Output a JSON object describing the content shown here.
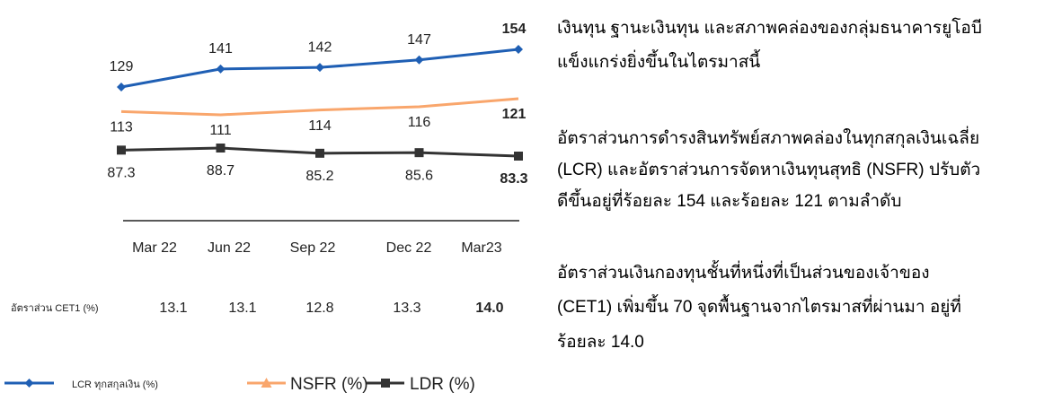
{
  "chart_data": {
    "type": "line",
    "categories": [
      "Mar 22",
      "Jun 22",
      "Sep 22",
      "Dec 22",
      "Mar23"
    ],
    "series": [
      {
        "name": "LCR ทุกสกุลเงิน (%)",
        "color": "#1f5fb4",
        "marker": "diamond",
        "values": [
          129,
          141,
          142,
          147,
          154
        ]
      },
      {
        "name": "NSFR (%)",
        "color": "#f9a66c",
        "marker": "triangle",
        "values": [
          113,
          111,
          114,
          116,
          121
        ]
      },
      {
        "name": "LDR (%)",
        "color": "#333333",
        "marker": "square",
        "values": [
          87.3,
          88.7,
          85.2,
          85.6,
          83.3
        ]
      }
    ]
  },
  "cet1_row": {
    "label": "อัตราส่วน CET1 (%)",
    "values": [
      "13.1",
      "13.1",
      "12.8",
      "13.3",
      "14.0"
    ]
  },
  "text": {
    "paragraphs": [
      [
        "เงินทุน ฐานะเงินทุน และสภาพคล่องของกลุ่มธนาคารยูโอบี",
        "แข็งแกร่งยิ่งขึ้นในไตรมาสนี้"
      ],
      [
        "อัตราส่วนการดำรงสินทรัพย์สภาพคล่องในทุกสกุลเงินเฉลี่ย",
        "(LCR) และอัตราส่วนการจัดหาเงินทุนสุทธิ (NSFR) ปรับตัว",
        "ดีขึ้นอยู่ที่ร้อยละ 154 และร้อยละ 121 ตามลำดับ"
      ],
      [
        "อัตราส่วนเงินกองทุนชั้นที่หนึ่งที่เป็นส่วนของเจ้าของ",
        "(CET1) เพิ่มขึ้น 70 จุดพื้นฐานจากไตรมาสที่ผ่านมา อยู่ที่",
        "ร้อยละ 14.0"
      ]
    ]
  }
}
